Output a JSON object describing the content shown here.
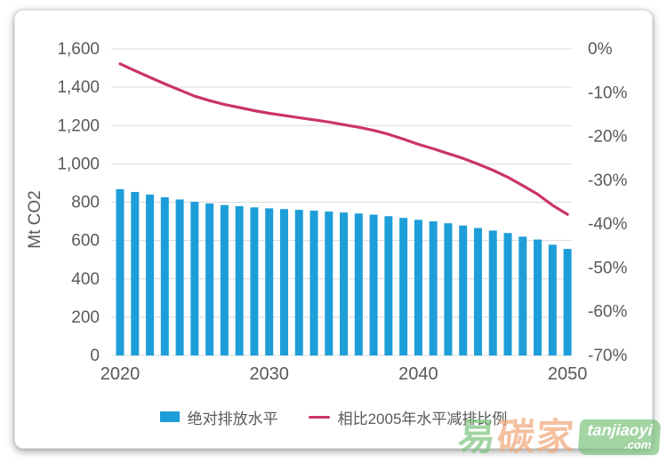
{
  "chart_data": {
    "type": "combo",
    "x": [
      2020,
      2021,
      2022,
      2023,
      2024,
      2025,
      2026,
      2027,
      2028,
      2029,
      2030,
      2031,
      2032,
      2033,
      2034,
      2035,
      2036,
      2037,
      2038,
      2039,
      2040,
      2041,
      2042,
      2043,
      2044,
      2045,
      2046,
      2047,
      2048,
      2049,
      2050
    ],
    "series": [
      {
        "name": "绝对排放水平",
        "type": "bar",
        "axis": "left",
        "unit": "Mt CO2",
        "color": "#1d9ed9",
        "values": [
          868,
          853,
          840,
          826,
          814,
          802,
          793,
          785,
          779,
          773,
          768,
          764,
          760,
          756,
          751,
          746,
          741,
          735,
          727,
          718,
          708,
          700,
          690,
          678,
          665,
          652,
          639,
          620,
          605,
          578,
          556
        ]
      },
      {
        "name": "相比2005年水平减排比例",
        "type": "line",
        "axis": "right",
        "unit": "%",
        "color": "#cb3467",
        "values": [
          -3.4,
          -5.0,
          -6.5,
          -8.0,
          -9.4,
          -10.8,
          -11.8,
          -12.7,
          -13.4,
          -14.1,
          -14.7,
          -15.2,
          -15.7,
          -16.2,
          -16.7,
          -17.3,
          -17.9,
          -18.6,
          -19.5,
          -20.6,
          -21.8,
          -22.8,
          -23.9,
          -25.0,
          -26.3,
          -27.7,
          -29.3,
          -31.2,
          -33.2,
          -35.7,
          -37.8
        ]
      }
    ],
    "left_axis": {
      "title": "Mt CO2",
      "min": 0,
      "max": 1600,
      "step": 200,
      "tick_labels": [
        "0",
        "200",
        "400",
        "600",
        "800",
        "1,000",
        "1,200",
        "1,400",
        "1,600"
      ]
    },
    "right_axis": {
      "min": -70,
      "max": 0,
      "step": 10,
      "tick_labels": [
        "0%",
        "-10%",
        "-20%",
        "-30%",
        "-40%",
        "-50%",
        "-60%",
        "-70%"
      ]
    },
    "x_axis": {
      "tick_years": [
        2020,
        2030,
        2040,
        2050
      ],
      "tick_labels": [
        "2020",
        "2030",
        "2040",
        "2050"
      ]
    },
    "grid": true,
    "legend_position": "bottom"
  },
  "colors": {
    "bar": "#1d9ed9",
    "line": "#cb3467",
    "grid": "#d9d9d9",
    "axis_text": "#595959",
    "background": "#ffffff"
  },
  "watermark": {
    "char1": "易",
    "char2": "碳",
    "char3": "家",
    "badge_line1": "tanjiaoyi",
    "badge_line2": ".com",
    "green": "#7fc581",
    "orange": "#f0a97c"
  }
}
